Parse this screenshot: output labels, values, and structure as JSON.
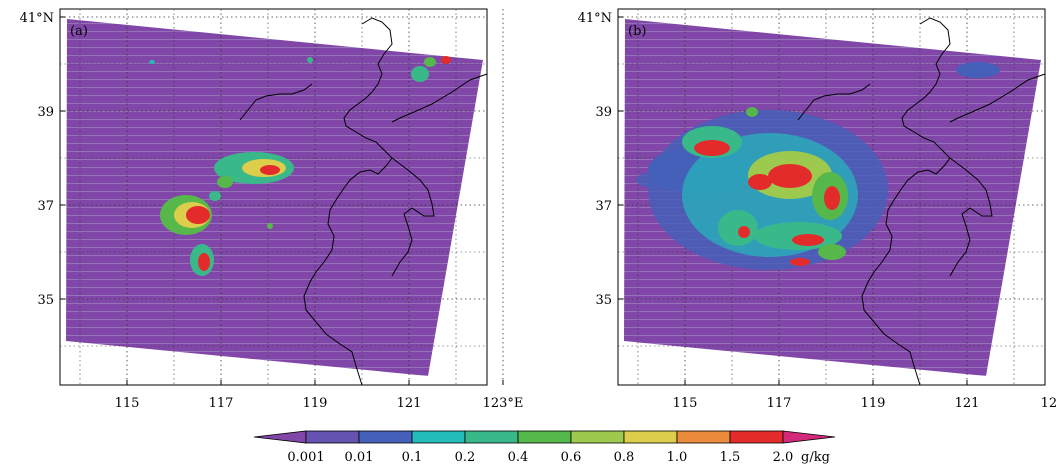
{
  "panels": [
    {
      "label": "(a)"
    },
    {
      "label": "(b)"
    }
  ],
  "map": {
    "lat_ticks": [
      {
        "text": "41°N",
        "value": 41
      },
      {
        "text": "39",
        "value": 39
      },
      {
        "text": "37",
        "value": 37
      },
      {
        "text": "35",
        "value": 35
      }
    ],
    "lon_ticks": [
      {
        "text": "115",
        "value": 115
      },
      {
        "text": "117",
        "value": 117
      },
      {
        "text": "119",
        "value": 119
      },
      {
        "text": "121",
        "value": 121
      },
      {
        "text": "123°E",
        "value": 123
      }
    ]
  },
  "colorbar": {
    "unit": "g/kg",
    "levels": [
      "0.001",
      "0.01",
      "0.1",
      "0.2",
      "0.4",
      "0.6",
      "0.8",
      "1.0",
      "1.5",
      "2.0"
    ],
    "colors": [
      "#8047a8",
      "#6652b0",
      "#4560b8",
      "#25bbbb",
      "#39b98a",
      "#56b84a",
      "#9cc94e",
      "#dccd4a",
      "#ea8a3a",
      "#e42b2b",
      "#d4287a"
    ]
  }
}
